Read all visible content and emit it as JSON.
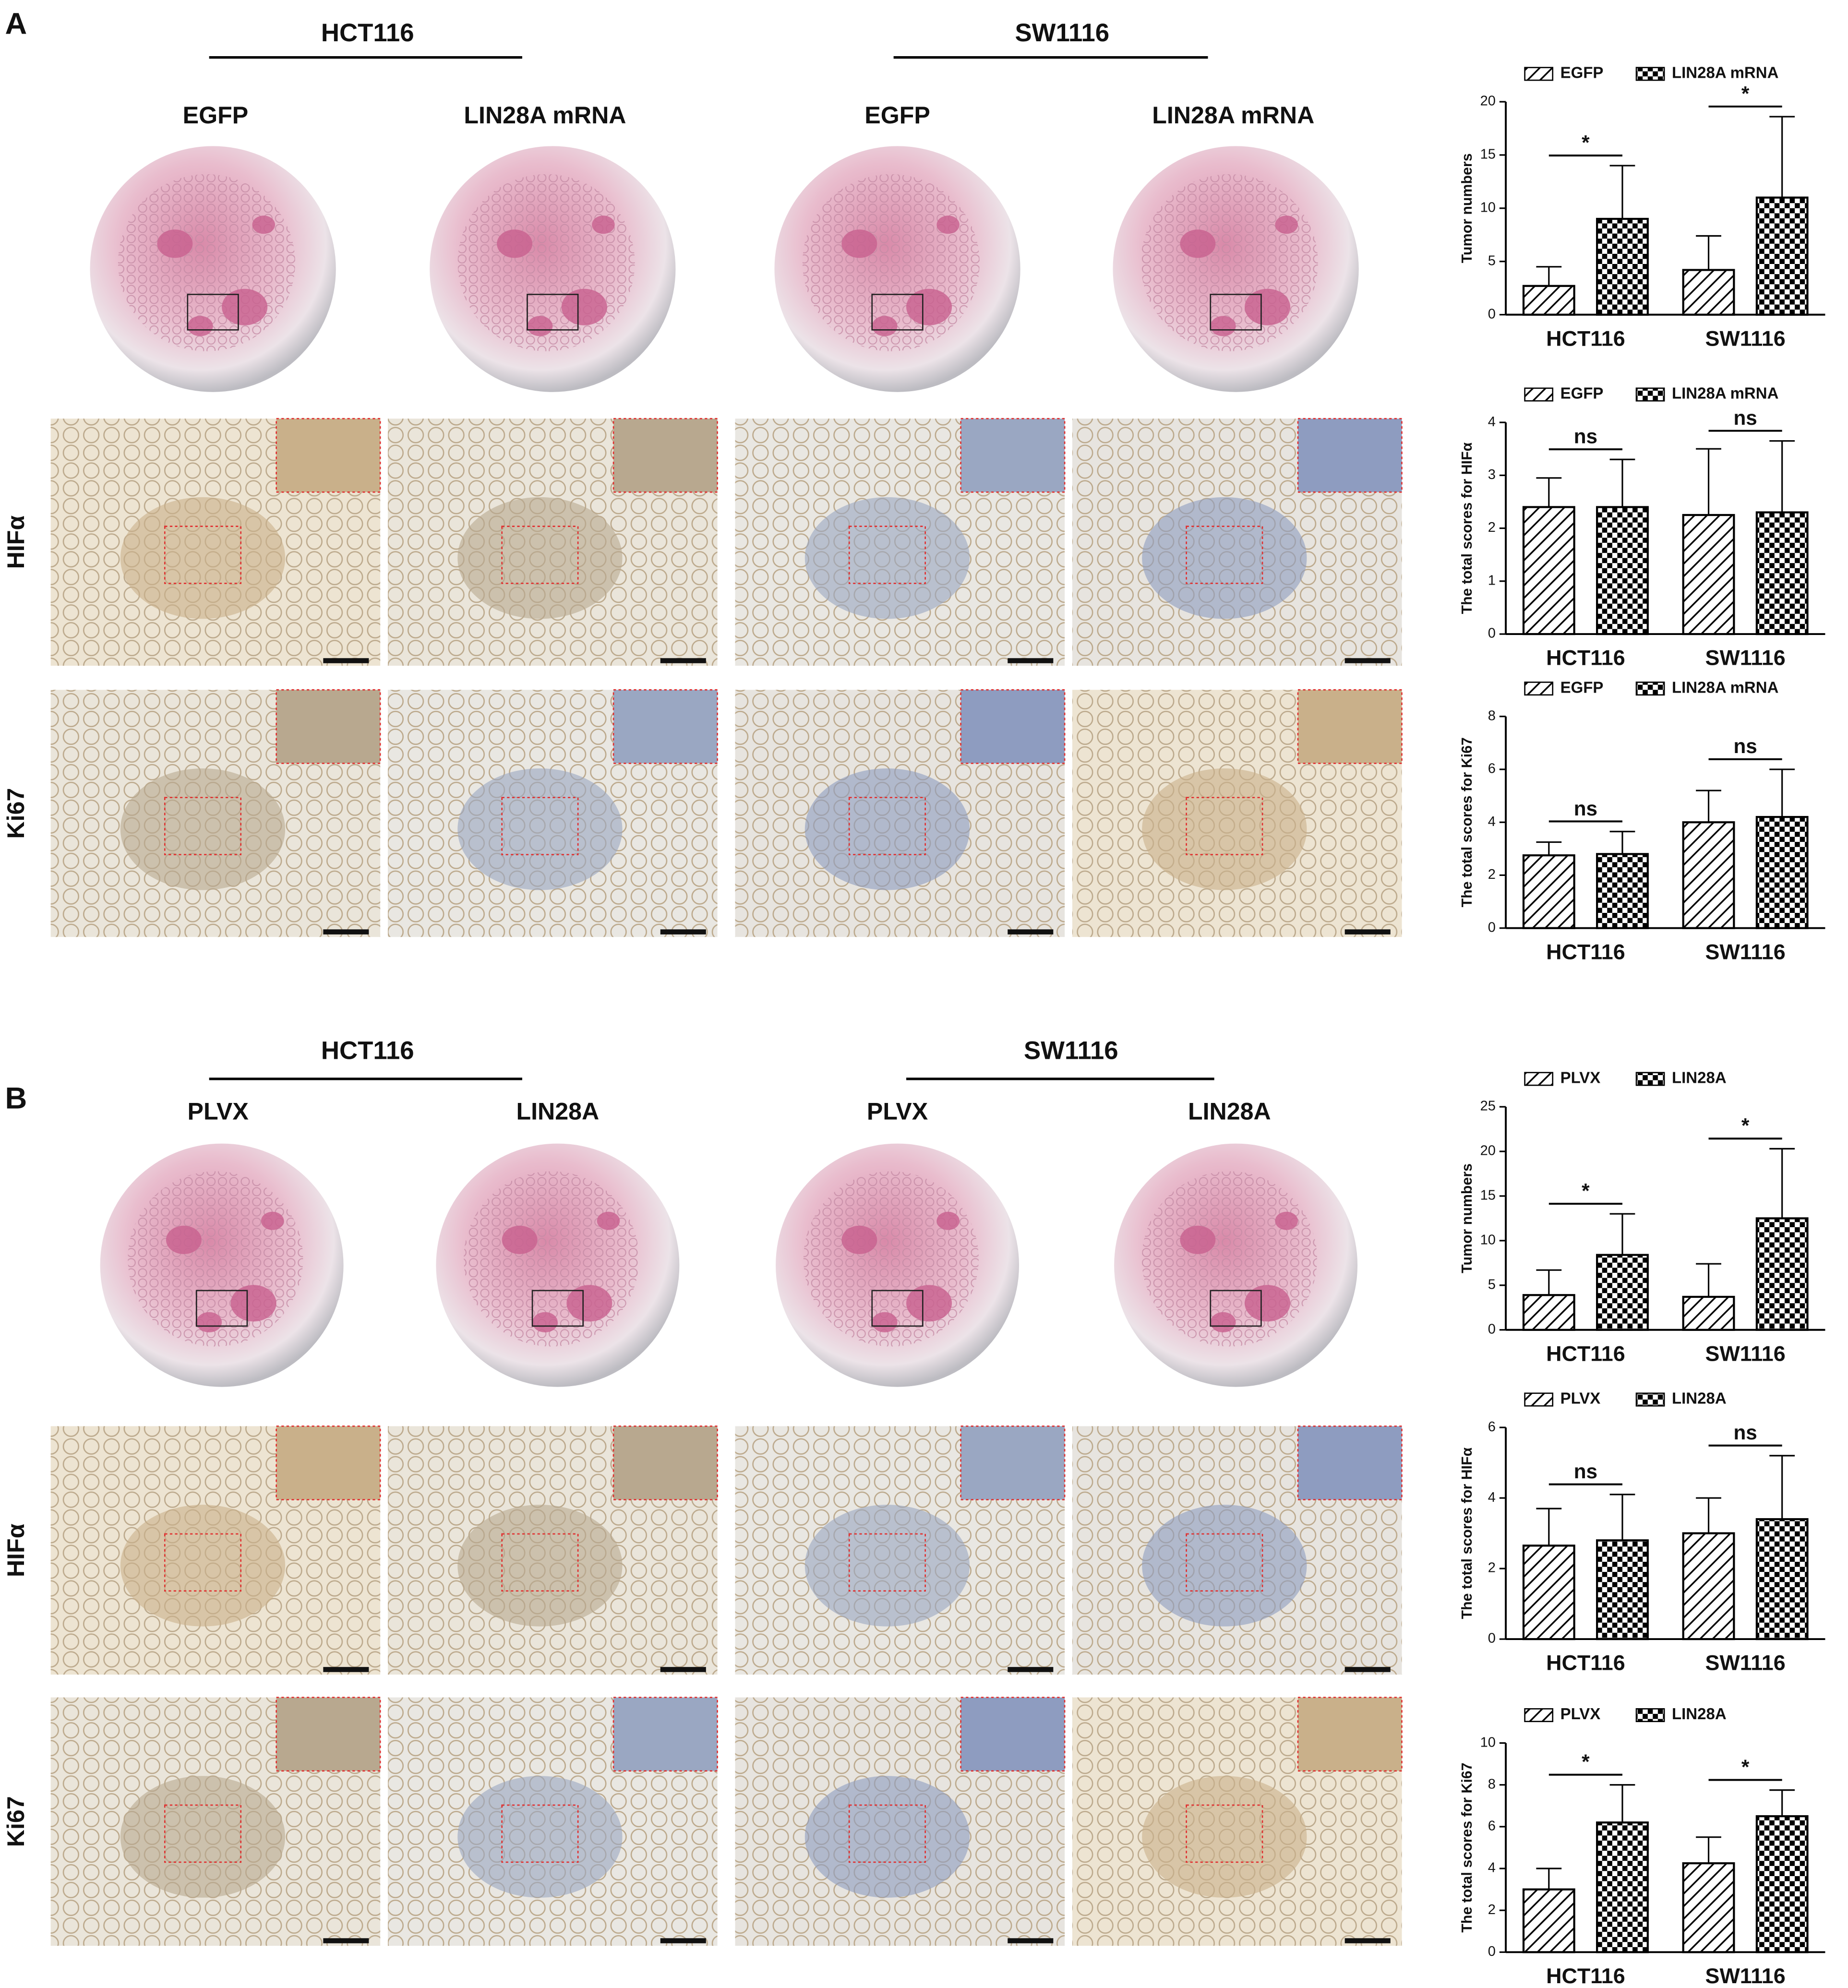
{
  "panels": [
    {
      "label": "A",
      "groups": [
        {
          "name": "HCT116",
          "columns": [
            "EGFP",
            "LIN28A mRNA"
          ]
        },
        {
          "name": "SW1116",
          "columns": [
            "EGFP",
            "LIN28A mRNA"
          ]
        }
      ],
      "rows": [
        "HIFα",
        "Ki67"
      ]
    },
    {
      "label": "B",
      "groups": [
        {
          "name": "HCT116",
          "columns": [
            "PLVX",
            "LIN28A"
          ]
        },
        {
          "name": "SW1116",
          "columns": [
            "PLVX",
            "LIN28A"
          ]
        }
      ],
      "rows": [
        "HIFα",
        "Ki67"
      ]
    }
  ],
  "chart_data": [
    {
      "type": "bar",
      "ylabel": "Tumor numbers",
      "categories": [
        "HCT116",
        "SW1116"
      ],
      "series": [
        {
          "name": "EGFP",
          "color": "#000000",
          "pattern": "hatch",
          "values": [
            2.7,
            4.2
          ],
          "errors": [
            1.8,
            3.2
          ]
        },
        {
          "name": "LIN28A mRNA",
          "color": "#000000",
          "pattern": "checker",
          "values": [
            9,
            11
          ],
          "errors": [
            5,
            7.6
          ]
        }
      ],
      "ylim": [
        0,
        20
      ],
      "yticks": [
        0,
        5,
        10,
        15,
        20
      ],
      "significance": [
        "*",
        "*"
      ]
    },
    {
      "type": "bar",
      "ylabel": "The total scores for HIFα",
      "categories": [
        "HCT116",
        "SW1116"
      ],
      "series": [
        {
          "name": "EGFP",
          "color": "#000000",
          "pattern": "hatch",
          "values": [
            2.4,
            2.25
          ],
          "errors": [
            0.55,
            1.25
          ]
        },
        {
          "name": "LIN28A mRNA",
          "color": "#000000",
          "pattern": "checker",
          "values": [
            2.4,
            2.3
          ],
          "errors": [
            0.9,
            1.35
          ]
        }
      ],
      "ylim": [
        0,
        4
      ],
      "yticks": [
        0,
        1,
        2,
        3,
        4
      ],
      "significance": [
        "ns",
        "ns"
      ]
    },
    {
      "type": "bar",
      "ylabel": "The total scores for Ki67",
      "categories": [
        "HCT116",
        "SW1116"
      ],
      "series": [
        {
          "name": "EGFP",
          "color": "#000000",
          "pattern": "hatch",
          "values": [
            2.75,
            4.0
          ],
          "errors": [
            0.5,
            1.2
          ]
        },
        {
          "name": "LIN28A mRNA",
          "color": "#000000",
          "pattern": "checker",
          "values": [
            2.8,
            4.2
          ],
          "errors": [
            0.85,
            1.8
          ]
        }
      ],
      "ylim": [
        0,
        8
      ],
      "yticks": [
        0,
        2,
        4,
        6,
        8
      ],
      "significance": [
        "ns",
        "ns"
      ]
    },
    {
      "type": "bar",
      "ylabel": "Tumor numbers",
      "categories": [
        "HCT116",
        "SW1116"
      ],
      "series": [
        {
          "name": "PLVX",
          "color": "#000000",
          "pattern": "hatch",
          "values": [
            3.9,
            3.7
          ],
          "errors": [
            2.8,
            3.7
          ]
        },
        {
          "name": "LIN28A",
          "color": "#000000",
          "pattern": "checker",
          "values": [
            8.4,
            12.5
          ],
          "errors": [
            4.6,
            7.8
          ]
        }
      ],
      "ylim": [
        0,
        25
      ],
      "yticks": [
        0,
        5,
        10,
        15,
        20,
        25
      ],
      "significance": [
        "*",
        "*"
      ]
    },
    {
      "type": "bar",
      "ylabel": "The total scores for HIFα",
      "categories": [
        "HCT116",
        "SW1116"
      ],
      "series": [
        {
          "name": "PLVX",
          "color": "#000000",
          "pattern": "hatch",
          "values": [
            2.65,
            3.0
          ],
          "errors": [
            1.05,
            1.0
          ]
        },
        {
          "name": "LIN28A",
          "color": "#000000",
          "pattern": "checker",
          "values": [
            2.8,
            3.4
          ],
          "errors": [
            1.3,
            1.8
          ]
        }
      ],
      "ylim": [
        0,
        6
      ],
      "yticks": [
        0,
        2,
        4,
        6
      ],
      "significance": [
        "ns",
        "ns"
      ]
    },
    {
      "type": "bar",
      "ylabel": "The total scores for Ki67",
      "categories": [
        "HCT116",
        "SW1116"
      ],
      "series": [
        {
          "name": "PLVX",
          "color": "#000000",
          "pattern": "hatch",
          "values": [
            3.0,
            4.25
          ],
          "errors": [
            1.0,
            1.25
          ]
        },
        {
          "name": "LIN28A",
          "color": "#000000",
          "pattern": "checker",
          "values": [
            6.2,
            6.5
          ],
          "errors": [
            1.8,
            1.25
          ]
        }
      ],
      "ylim": [
        0,
        10
      ],
      "yticks": [
        0,
        2,
        4,
        6,
        8,
        10
      ],
      "significance": [
        "*",
        "*"
      ]
    }
  ]
}
